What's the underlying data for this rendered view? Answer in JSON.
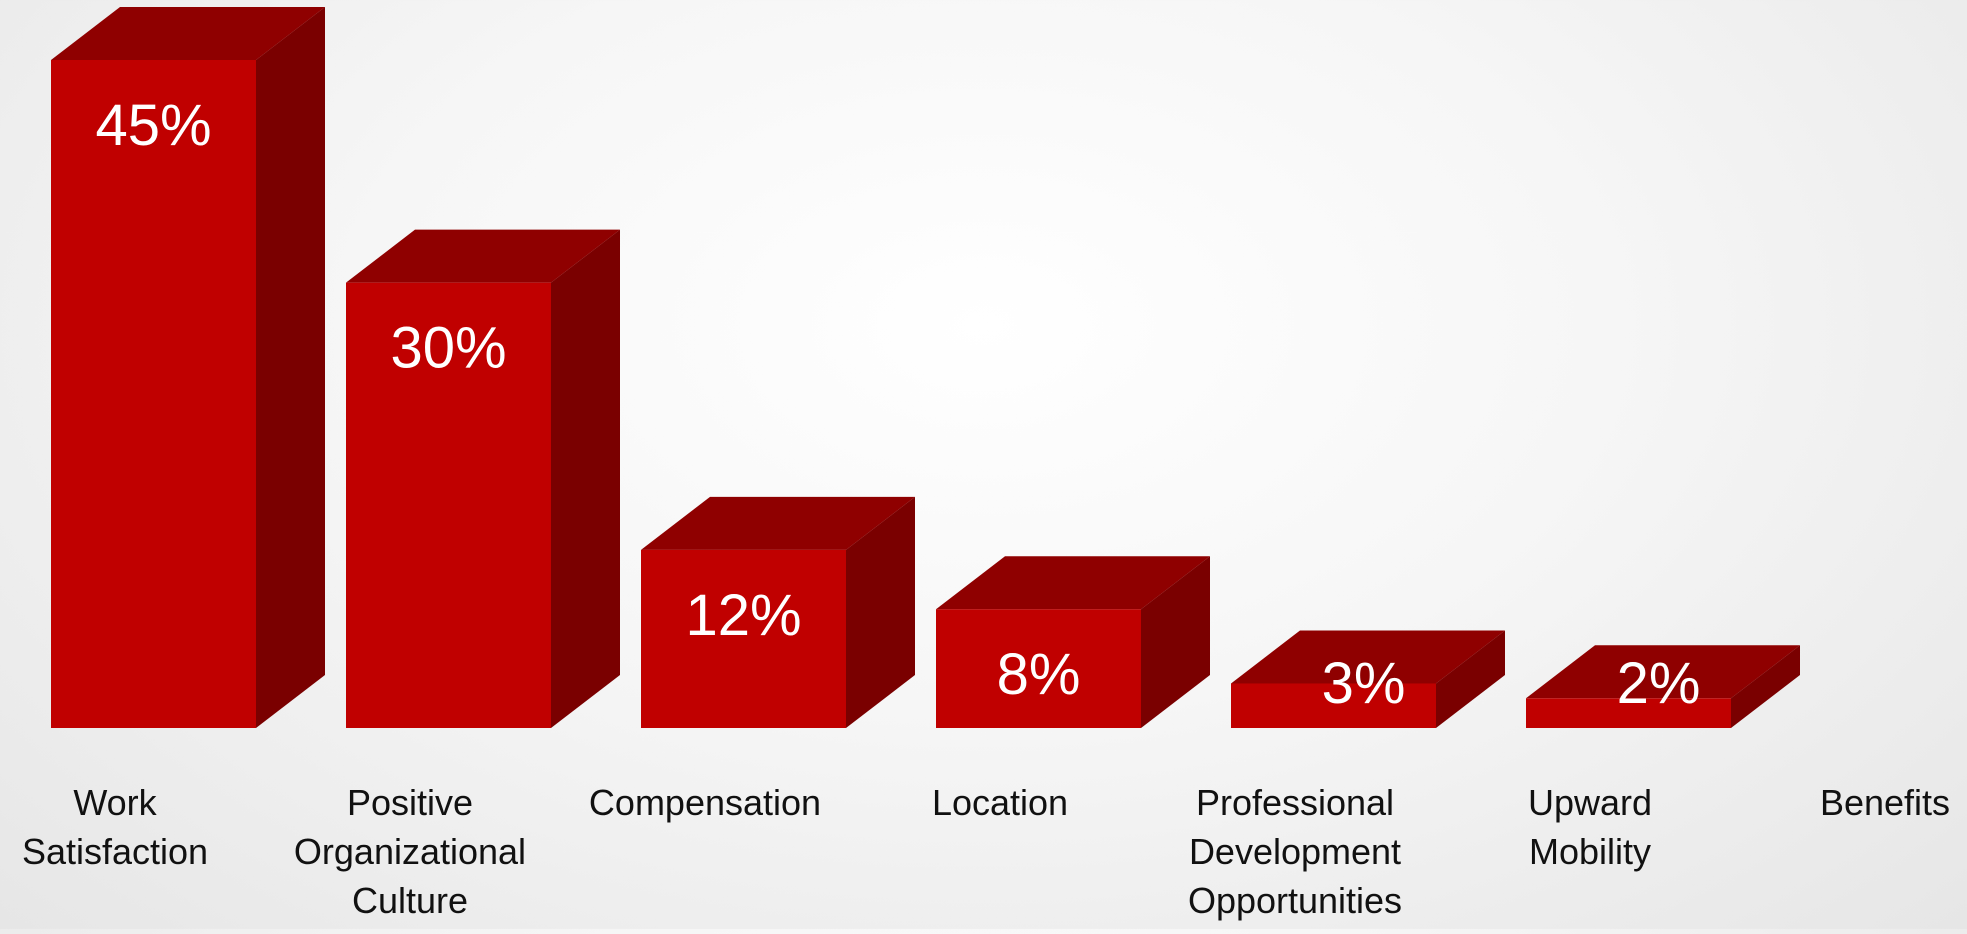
{
  "chart_data": {
    "type": "bar",
    "style": "3d-column",
    "categories": [
      "Work Satisfaction",
      "Positive Organizational Culture",
      "Compensation",
      "Location",
      "Professional Development Opportunities",
      "Upward Mobility",
      "Benefits"
    ],
    "category_label_lines": [
      [
        "Work",
        "Satisfaction"
      ],
      [
        "Positive",
        "Organizational",
        "Culture"
      ],
      [
        "Compensation"
      ],
      [
        "Location"
      ],
      [
        "Professional",
        "Development",
        "Opportunities"
      ],
      [
        "Upward",
        "Mobility"
      ],
      [
        "Benefits"
      ]
    ],
    "values": [
      45,
      30,
      12,
      8,
      3,
      2,
      null
    ],
    "data_labels": [
      "45%",
      "30%",
      "12%",
      "8%",
      "3%",
      "2%",
      ""
    ],
    "value_unit": "%",
    "ylim": [
      0,
      45
    ],
    "title": "",
    "xlabel": "",
    "ylabel": "",
    "grid": false,
    "legend": "none",
    "colors": {
      "front": "#c00000",
      "top": "#8f0000",
      "side": "#7a0000",
      "value_label": "#ffffff",
      "category_label": "#111111"
    }
  }
}
